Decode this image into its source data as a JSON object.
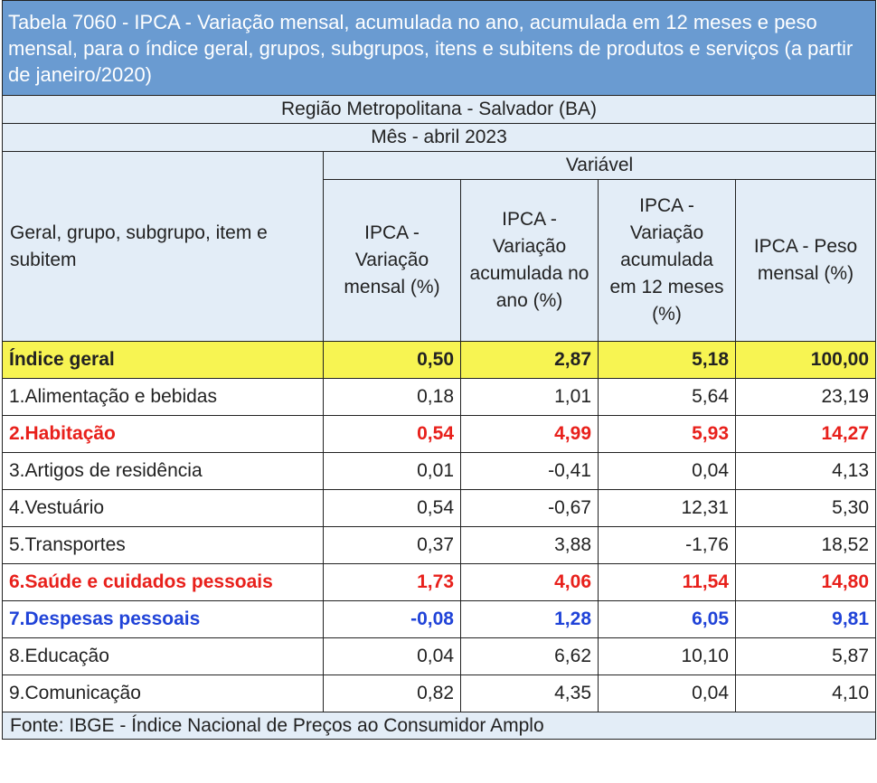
{
  "table": {
    "title": "Tabela 7060 - IPCA - Variação mensal, acumulada no ano, acumulada em 12 meses e peso mensal, para o índice geral, grupos, subgrupos, itens e subitens de produtos e serviços (a partir de janeiro/2020)",
    "region": "Região Metropolitana - Salvador (BA)",
    "month": "Mês - abril 2023",
    "variable_header": "Variável",
    "row_header": "Geral, grupo, subgrupo, item e subitem",
    "columns": [
      "IPCA - Variação mensal (%)",
      "IPCA - Variação acumulada no ano (%)",
      "IPCA - Variação acumulada em 12 meses (%)",
      "IPCA - Peso mensal (%)"
    ],
    "rows": [
      {
        "label": "Índice geral",
        "values": [
          "0,50",
          "2,87",
          "5,18",
          "100,00"
        ]
      },
      {
        "label": "1.Alimentação e bebidas",
        "values": [
          "0,18",
          "1,01",
          "5,64",
          "23,19"
        ]
      },
      {
        "label": "2.Habitação",
        "values": [
          "0,54",
          "4,99",
          "5,93",
          "14,27"
        ]
      },
      {
        "label": "3.Artigos de residência",
        "values": [
          "0,01",
          "-0,41",
          "0,04",
          "4,13"
        ]
      },
      {
        "label": "4.Vestuário",
        "values": [
          "0,54",
          "-0,67",
          "12,31",
          "5,30"
        ]
      },
      {
        "label": "5.Transportes",
        "values": [
          "0,37",
          "3,88",
          "-1,76",
          "18,52"
        ]
      },
      {
        "label": "6.Saúde e cuidados pessoais",
        "values": [
          "1,73",
          "4,06",
          "11,54",
          "14,80"
        ]
      },
      {
        "label": "7.Despesas pessoais",
        "values": [
          "-0,08",
          "1,28",
          "6,05",
          "9,81"
        ]
      },
      {
        "label": "8.Educação",
        "values": [
          "0,04",
          "6,62",
          "10,10",
          "5,87"
        ]
      },
      {
        "label": "9.Comunicação",
        "values": [
          "0,82",
          "4,35",
          "0,04",
          "4,10"
        ]
      }
    ],
    "source": "Fonte: IBGE - Índice Nacional de Preços ao Consumidor Amplo"
  },
  "colors": {
    "title_bg": "#6a9bd1",
    "header_bg": "#e3edf7",
    "highlight_yellow": "#f7f452",
    "emphasis_red": "#e8201b",
    "emphasis_blue": "#2043d8"
  }
}
